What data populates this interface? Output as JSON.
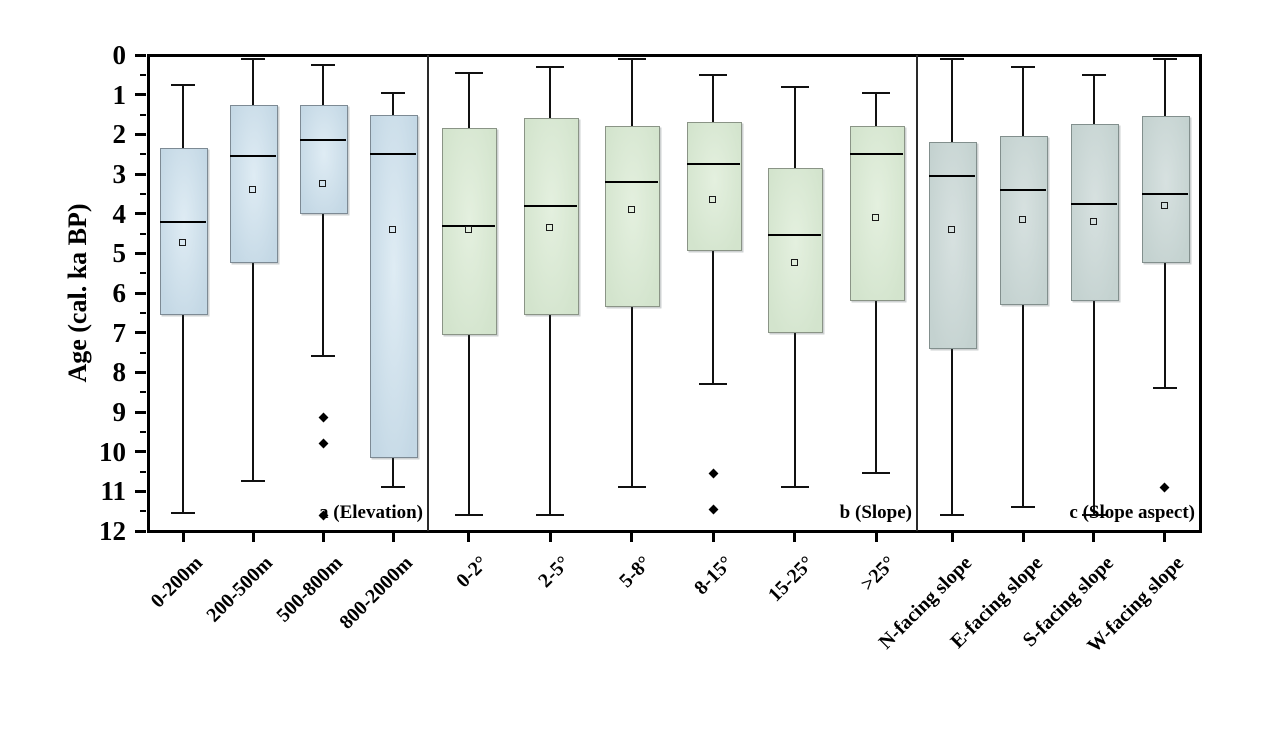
{
  "chart_data": {
    "type": "boxplot",
    "title": "",
    "ylabel": "Age (cal. ka BP)",
    "ylim": [
      0,
      12
    ],
    "y_inverted": true,
    "y_ticks": [
      0,
      1,
      2,
      3,
      4,
      5,
      6,
      7,
      8,
      9,
      10,
      11,
      12
    ],
    "y_minor_tick_step": 0.5,
    "grid": "off",
    "legend": "none",
    "panels": [
      {
        "name": "a (Elevation)",
        "box_fill_base": "#c4d8e5",
        "box_fill_light": "#dfecf4",
        "box_border": "#7d8a94",
        "categories": [
          "0-200m",
          "200-500m",
          "500-800m",
          "800-2000m"
        ],
        "boxes": [
          {
            "category": "0-200m",
            "whisker_top": 0.75,
            "q1": 2.35,
            "median": 4.2,
            "mean": 4.75,
            "q3": 6.5,
            "whisker_bottom": 11.55,
            "outliers": []
          },
          {
            "category": "200-500m",
            "whisker_top": 0.1,
            "q1": 1.25,
            "median": 2.55,
            "mean": 3.4,
            "q3": 5.2,
            "whisker_bottom": 10.75,
            "outliers": []
          },
          {
            "category": "500-800m",
            "whisker_top": 0.25,
            "q1": 1.25,
            "median": 2.15,
            "mean": 3.25,
            "q3": 3.95,
            "whisker_bottom": 7.6,
            "outliers": [
              9.15,
              9.8,
              11.6
            ]
          },
          {
            "category": "800-2000m",
            "whisker_top": 0.95,
            "q1": 1.5,
            "median": 2.5,
            "mean": 4.4,
            "q3": 10.1,
            "whisker_bottom": 10.9,
            "outliers": []
          }
        ]
      },
      {
        "name": "b (Slope)",
        "box_fill_base": "#d3e4cd",
        "box_fill_light": "#e4f0df",
        "box_border": "#8a9486",
        "categories": [
          "0-2°",
          "2-5°",
          "5-8°",
          "8-15°",
          "15-25°",
          ">25°"
        ],
        "boxes": [
          {
            "category": "0-2°",
            "whisker_top": 0.45,
            "q1": 1.85,
            "median": 4.3,
            "mean": 4.4,
            "q3": 7.0,
            "whisker_bottom": 11.6,
            "outliers": []
          },
          {
            "category": "2-5°",
            "whisker_top": 0.3,
            "q1": 1.6,
            "median": 3.8,
            "mean": 4.35,
            "q3": 6.5,
            "whisker_bottom": 11.6,
            "outliers": []
          },
          {
            "category": "5-8°",
            "whisker_top": 0.1,
            "q1": 1.8,
            "median": 3.2,
            "mean": 3.9,
            "q3": 6.3,
            "whisker_bottom": 10.9,
            "outliers": []
          },
          {
            "category": "8-15°",
            "whisker_top": 0.5,
            "q1": 1.7,
            "median": 2.75,
            "mean": 3.65,
            "q3": 4.9,
            "whisker_bottom": 8.3,
            "outliers": [
              10.55,
              11.45
            ]
          },
          {
            "category": "15-25°",
            "whisker_top": 0.8,
            "q1": 2.85,
            "median": 4.55,
            "mean": 5.25,
            "q3": 6.95,
            "whisker_bottom": 10.9,
            "outliers": []
          },
          {
            "category": ">25°",
            "whisker_top": 0.95,
            "q1": 1.8,
            "median": 2.5,
            "mean": 4.1,
            "q3": 6.15,
            "whisker_bottom": 10.55,
            "outliers": []
          }
        ]
      },
      {
        "name": "c (Slope aspect)",
        "box_fill_base": "#c4d2d0",
        "box_fill_light": "#d7e1e0",
        "box_border": "#828f8d",
        "categories": [
          "N-facing slope",
          "E-facing slope",
          "S-facing slope",
          "W-facing slope"
        ],
        "boxes": [
          {
            "category": "N-facing slope",
            "whisker_top": 0.1,
            "q1": 2.2,
            "median": 3.05,
            "mean": 4.4,
            "q3": 7.35,
            "whisker_bottom": 11.6,
            "outliers": []
          },
          {
            "category": "E-facing slope",
            "whisker_top": 0.3,
            "q1": 2.05,
            "median": 3.4,
            "mean": 4.15,
            "q3": 6.25,
            "whisker_bottom": 11.4,
            "outliers": []
          },
          {
            "category": "S-facing slope",
            "whisker_top": 0.5,
            "q1": 1.75,
            "median": 3.75,
            "mean": 4.2,
            "q3": 6.15,
            "whisker_bottom": 11.6,
            "outliers": []
          },
          {
            "category": "W-facing slope",
            "whisker_top": 0.1,
            "q1": 1.55,
            "median": 3.5,
            "mean": 3.8,
            "q3": 5.2,
            "whisker_bottom": 8.4,
            "outliers": [
              10.9
            ]
          }
        ]
      }
    ],
    "marker_legend": {
      "mean_marker": "small open square",
      "outlier_marker": "filled diamond"
    }
  }
}
